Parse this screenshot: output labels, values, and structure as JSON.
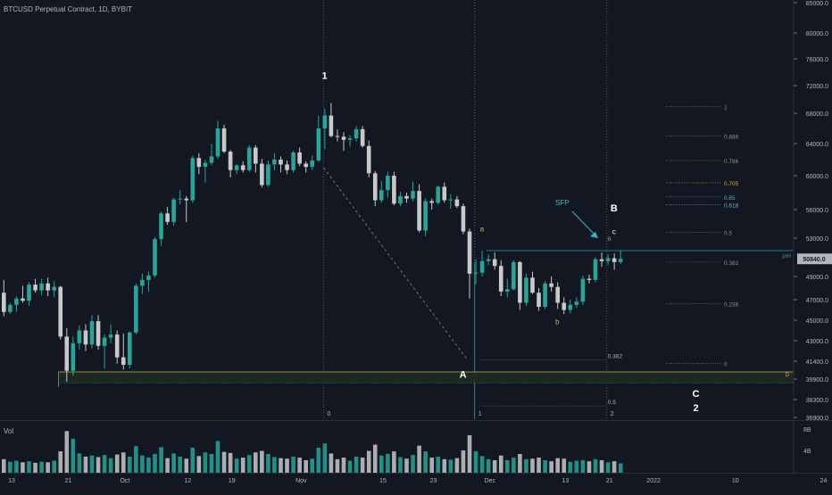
{
  "colors": {
    "background": "#131722",
    "up": "#26a69a",
    "down": "#c9c9c9",
    "text": "#b2b5be",
    "white": "#ffffff",
    "gold": "#c9b64a",
    "axis_line": "#2a2e39",
    "price_badge": "#b2b5be",
    "prh_line": "#26a69a",
    "fib_705": "#e3a234",
    "fib_65": "#5ab4d8",
    "fib_618": "#5ab4d8",
    "sfp": "#3fb6c6"
  },
  "header": {
    "title": "BTCUSD Perpetual Contract, 1D, BYBIT"
  },
  "volume_pane": {
    "label": "Vol",
    "axis_labels": [
      "8B",
      "4B"
    ]
  },
  "chart_data": {
    "type": "candlestick",
    "title": "BTCUSD Perpetual Contract, 1D, BYBIT",
    "y_axis": {
      "tick_labels": [
        "85000.0",
        "80000.0",
        "76000.0",
        "72000.0",
        "68000.0",
        "64000.0",
        "60000.0",
        "56000.0",
        "53000.0",
        "49000.0",
        "47000.0",
        "45000.0",
        "43000.0",
        "41400.0",
        "39900.0",
        "38300.0",
        "36900.0"
      ],
      "current_price_label": "50840.0",
      "prh_label": "prH"
    },
    "x_axis": {
      "tick_labels": [
        "13",
        "21",
        "Oct",
        "12",
        "19",
        "Nov",
        "15",
        "23",
        "Dec",
        "13",
        "21",
        "2022",
        "10",
        "24"
      ]
    },
    "candles": [
      {
        "o": 47600,
        "h": 48700,
        "l": 45400,
        "c": 45800
      },
      {
        "o": 45800,
        "h": 46700,
        "l": 45600,
        "c": 46500
      },
      {
        "o": 46500,
        "h": 47300,
        "l": 45800,
        "c": 47100
      },
      {
        "o": 47100,
        "h": 48200,
        "l": 46700,
        "c": 46900
      },
      {
        "o": 46900,
        "h": 48500,
        "l": 46400,
        "c": 48300
      },
      {
        "o": 48300,
        "h": 48800,
        "l": 47600,
        "c": 47800
      },
      {
        "o": 47800,
        "h": 48800,
        "l": 47400,
        "c": 48400
      },
      {
        "o": 48400,
        "h": 48900,
        "l": 47300,
        "c": 47800
      },
      {
        "o": 47800,
        "h": 48600,
        "l": 47200,
        "c": 48100
      },
      {
        "o": 48100,
        "h": 48200,
        "l": 43100,
        "c": 43400
      },
      {
        "o": 43400,
        "h": 44200,
        "l": 39700,
        "c": 40600
      },
      {
        "o": 40600,
        "h": 43400,
        "l": 40200,
        "c": 42800
      },
      {
        "o": 42800,
        "h": 44500,
        "l": 42300,
        "c": 44000
      },
      {
        "o": 44000,
        "h": 44600,
        "l": 42200,
        "c": 42700
      },
      {
        "o": 42700,
        "h": 45500,
        "l": 42400,
        "c": 44900
      },
      {
        "o": 44900,
        "h": 45500,
        "l": 42300,
        "c": 42600
      },
      {
        "o": 42600,
        "h": 43600,
        "l": 40800,
        "c": 43300
      },
      {
        "o": 43300,
        "h": 44600,
        "l": 42800,
        "c": 43600
      },
      {
        "o": 43600,
        "h": 44000,
        "l": 41200,
        "c": 41700
      },
      {
        "o": 41700,
        "h": 43700,
        "l": 40700,
        "c": 41100
      },
      {
        "o": 41100,
        "h": 43900,
        "l": 40800,
        "c": 43800
      },
      {
        "o": 43800,
        "h": 48400,
        "l": 43600,
        "c": 48200
      },
      {
        "o": 48200,
        "h": 49300,
        "l": 47500,
        "c": 48700
      },
      {
        "o": 48700,
        "h": 49500,
        "l": 47700,
        "c": 49100
      },
      {
        "o": 49100,
        "h": 53100,
        "l": 48900,
        "c": 52900
      },
      {
        "o": 52900,
        "h": 55800,
        "l": 52200,
        "c": 55600
      },
      {
        "o": 55600,
        "h": 56300,
        "l": 54400,
        "c": 54700
      },
      {
        "o": 54700,
        "h": 57400,
        "l": 54300,
        "c": 57200
      },
      {
        "o": 57200,
        "h": 58300,
        "l": 56600,
        "c": 57300
      },
      {
        "o": 57300,
        "h": 57600,
        "l": 54700,
        "c": 57100
      },
      {
        "o": 57100,
        "h": 62500,
        "l": 56800,
        "c": 62200
      },
      {
        "o": 62200,
        "h": 62800,
        "l": 60200,
        "c": 61100
      },
      {
        "o": 61100,
        "h": 62000,
        "l": 59200,
        "c": 61600
      },
      {
        "o": 61600,
        "h": 64000,
        "l": 61300,
        "c": 62400
      },
      {
        "o": 62400,
        "h": 67000,
        "l": 62100,
        "c": 66000
      },
      {
        "o": 66000,
        "h": 66500,
        "l": 62800,
        "c": 63000
      },
      {
        "o": 63000,
        "h": 63200,
        "l": 59800,
        "c": 60700
      },
      {
        "o": 60700,
        "h": 61400,
        "l": 60200,
        "c": 61300
      },
      {
        "o": 61300,
        "h": 61800,
        "l": 60400,
        "c": 60700
      },
      {
        "o": 60700,
        "h": 63800,
        "l": 60500,
        "c": 63500
      },
      {
        "o": 63500,
        "h": 63800,
        "l": 60400,
        "c": 61500
      },
      {
        "o": 61500,
        "h": 62100,
        "l": 58600,
        "c": 58900
      },
      {
        "o": 58900,
        "h": 61900,
        "l": 58700,
        "c": 61400
      },
      {
        "o": 61400,
        "h": 62800,
        "l": 60700,
        "c": 62000
      },
      {
        "o": 62000,
        "h": 62400,
        "l": 60400,
        "c": 61400
      },
      {
        "o": 61400,
        "h": 61900,
        "l": 60200,
        "c": 60700
      },
      {
        "o": 60700,
        "h": 63100,
        "l": 60400,
        "c": 62900
      },
      {
        "o": 62900,
        "h": 63500,
        "l": 61200,
        "c": 61500
      },
      {
        "o": 61500,
        "h": 61800,
        "l": 60400,
        "c": 61100
      },
      {
        "o": 61100,
        "h": 62500,
        "l": 60700,
        "c": 61900
      },
      {
        "o": 61900,
        "h": 67700,
        "l": 61700,
        "c": 66000
      },
      {
        "o": 66000,
        "h": 68700,
        "l": 63300,
        "c": 67700
      },
      {
        "o": 67700,
        "h": 69500,
        "l": 64800,
        "c": 65000
      },
      {
        "o": 65000,
        "h": 65900,
        "l": 64300,
        "c": 64900
      },
      {
        "o": 64900,
        "h": 65500,
        "l": 63100,
        "c": 64500
      },
      {
        "o": 64500,
        "h": 65100,
        "l": 63600,
        "c": 64700
      },
      {
        "o": 64700,
        "h": 66300,
        "l": 64300,
        "c": 65900
      },
      {
        "o": 65900,
        "h": 66300,
        "l": 63500,
        "c": 63700
      },
      {
        "o": 63700,
        "h": 64400,
        "l": 59800,
        "c": 60300
      },
      {
        "o": 60300,
        "h": 60600,
        "l": 56400,
        "c": 57100
      },
      {
        "o": 57100,
        "h": 59400,
        "l": 56800,
        "c": 58300
      },
      {
        "o": 58300,
        "h": 60500,
        "l": 57400,
        "c": 60000
      },
      {
        "o": 60000,
        "h": 60500,
        "l": 56500,
        "c": 56700
      },
      {
        "o": 56700,
        "h": 58100,
        "l": 56400,
        "c": 57600
      },
      {
        "o": 57600,
        "h": 58000,
        "l": 56800,
        "c": 57300
      },
      {
        "o": 57300,
        "h": 59300,
        "l": 57000,
        "c": 58200
      },
      {
        "o": 58200,
        "h": 59000,
        "l": 53600,
        "c": 53800
      },
      {
        "o": 53800,
        "h": 57300,
        "l": 53200,
        "c": 57000
      },
      {
        "o": 57000,
        "h": 57300,
        "l": 56000,
        "c": 56800
      },
      {
        "o": 56800,
        "h": 58800,
        "l": 56600,
        "c": 58700
      },
      {
        "o": 58700,
        "h": 59200,
        "l": 56800,
        "c": 57100
      },
      {
        "o": 57100,
        "h": 57800,
        "l": 56100,
        "c": 57200
      },
      {
        "o": 57200,
        "h": 57600,
        "l": 56200,
        "c": 56400
      },
      {
        "o": 56400,
        "h": 56700,
        "l": 53400,
        "c": 53700
      },
      {
        "o": 53700,
        "h": 54000,
        "l": 47100,
        "c": 49300
      },
      {
        "o": 49300,
        "h": 50800,
        "l": 48300,
        "c": 49400
      },
      {
        "o": 49400,
        "h": 51700,
        "l": 49000,
        "c": 50600
      },
      {
        "o": 50600,
        "h": 51300,
        "l": 50200,
        "c": 50800
      },
      {
        "o": 50800,
        "h": 51500,
        "l": 49700,
        "c": 50100
      },
      {
        "o": 50100,
        "h": 50700,
        "l": 47300,
        "c": 47700
      },
      {
        "o": 47700,
        "h": 48800,
        "l": 47200,
        "c": 47900
      },
      {
        "o": 47900,
        "h": 50700,
        "l": 47800,
        "c": 50500
      },
      {
        "o": 50500,
        "h": 50600,
        "l": 46000,
        "c": 46700
      },
      {
        "o": 46700,
        "h": 49300,
        "l": 46400,
        "c": 48900
      },
      {
        "o": 48900,
        "h": 49500,
        "l": 47500,
        "c": 47600
      },
      {
        "o": 47600,
        "h": 48000,
        "l": 45900,
        "c": 46300
      },
      {
        "o": 46300,
        "h": 48600,
        "l": 46100,
        "c": 48400
      },
      {
        "o": 48400,
        "h": 49000,
        "l": 47700,
        "c": 48100
      },
      {
        "o": 48100,
        "h": 48500,
        "l": 46100,
        "c": 46700
      },
      {
        "o": 46700,
        "h": 47200,
        "l": 45600,
        "c": 46000
      },
      {
        "o": 46000,
        "h": 47000,
        "l": 45700,
        "c": 46500
      },
      {
        "o": 46500,
        "h": 47200,
        "l": 46200,
        "c": 46800
      },
      {
        "o": 46800,
        "h": 49100,
        "l": 46500,
        "c": 48800
      },
      {
        "o": 48800,
        "h": 49200,
        "l": 48400,
        "c": 48700
      },
      {
        "o": 48700,
        "h": 51000,
        "l": 48500,
        "c": 50800
      },
      {
        "o": 50800,
        "h": 51500,
        "l": 50000,
        "c": 50600
      },
      {
        "o": 50600,
        "h": 51300,
        "l": 50200,
        "c": 50900
      },
      {
        "o": 50900,
        "h": 51400,
        "l": 49700,
        "c": 50500
      },
      {
        "o": 50500,
        "h": 51700,
        "l": 50300,
        "c": 50840
      }
    ],
    "volume": [
      2.6,
      2.1,
      2.3,
      2.0,
      2.2,
      1.9,
      2.1,
      2.0,
      2.3,
      4.1,
      8.0,
      6.5,
      3.7,
      3.1,
      3.3,
      3.0,
      3.4,
      2.8,
      3.5,
      3.9,
      3.1,
      5.1,
      3.3,
      2.9,
      3.6,
      4.9,
      2.8,
      3.7,
      3.1,
      2.7,
      4.8,
      3.2,
      3.9,
      3.6,
      6.1,
      4.0,
      3.8,
      2.7,
      2.9,
      3.4,
      3.9,
      4.2,
      3.6,
      3.0,
      2.8,
      2.7,
      3.1,
      2.9,
      2.4,
      2.7,
      4.8,
      5.6,
      3.7,
      2.6,
      2.9,
      2.3,
      3.1,
      2.9,
      4.2,
      5.4,
      3.3,
      3.6,
      4.1,
      3.0,
      2.7,
      3.4,
      5.2,
      4.1,
      2.9,
      3.1,
      2.6,
      2.5,
      2.8,
      4.3,
      7.2,
      4.1,
      3.2,
      2.6,
      2.4,
      3.3,
      2.4,
      2.9,
      3.6,
      2.6,
      2.7,
      2.9,
      2.4,
      2.2,
      2.8,
      2.7,
      2.1,
      2.3,
      2.4,
      2.2,
      2.6,
      2.4,
      2.0,
      2.2,
      1.8
    ],
    "fib_levels": [
      {
        "label": "1",
        "price": 69000
      },
      {
        "label": "0.886",
        "price": 65000
      },
      {
        "label": "0.786",
        "price": 61900
      },
      {
        "label": "0.705",
        "price": 59150
      },
      {
        "label": "0.65",
        "price": 57500
      },
      {
        "label": "0.618",
        "price": 56600
      },
      {
        "label": "0.5",
        "price": 53600
      },
      {
        "label": "0.382",
        "price": 50500
      },
      {
        "label": "0.236",
        "price": 46600
      },
      {
        "label": "0",
        "price": 41200
      }
    ],
    "wave_labels": [
      {
        "text": "1",
        "price": 73000,
        "x_index": 51
      },
      {
        "text": "a",
        "price": 53700,
        "x_index": 76
      },
      {
        "text": "b",
        "price": 44600,
        "x_index": 88
      },
      {
        "text": "c",
        "price": 53400,
        "x_index": 97
      },
      {
        "text": "B",
        "price": 55800,
        "x_index": 97
      },
      {
        "text": "A",
        "price": 40000,
        "x_index": 73
      },
      {
        "text": "C",
        "price": 38500,
        "x_index": 110
      },
      {
        "text": "2",
        "price": 37400,
        "x_index": 110
      }
    ],
    "annotations": {
      "sfp": "SFP",
      "prh": "prH",
      "fib_ext_0382": "0.382",
      "fib_ext_05": "0.5",
      "fib_ext_0": "0",
      "marker_0": "0",
      "marker_1": "1",
      "marker_2": "2",
      "d_label": "D"
    }
  }
}
